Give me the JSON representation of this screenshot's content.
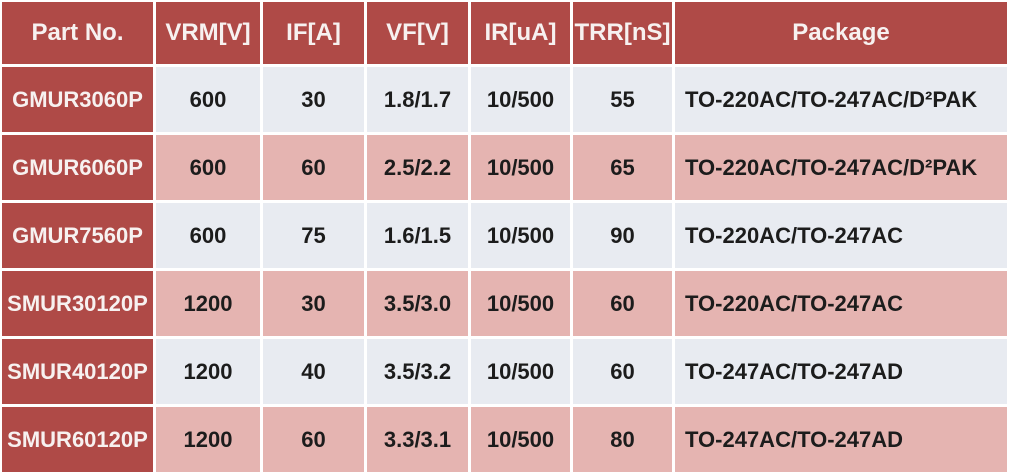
{
  "colors": {
    "header_bg": "#AF4A47",
    "header_text": "#F7F1F0",
    "row_alt_light": "#E8EBF1",
    "row_alt_pink": "#E5B4B1",
    "cell_text": "#1C1C1C",
    "grid": "#FFFFFF"
  },
  "table": {
    "columns": [
      {
        "key": "part_no",
        "label": "Part No."
      },
      {
        "key": "vrm",
        "label": "VRM[V]"
      },
      {
        "key": "if",
        "label": "IF[A]"
      },
      {
        "key": "vf",
        "label": "VF[V]"
      },
      {
        "key": "ir",
        "label": "IR[uA]"
      },
      {
        "key": "trr",
        "label": "TRR[nS]"
      },
      {
        "key": "package",
        "label": "Package"
      }
    ],
    "rows": [
      {
        "part_no": "GMUR3060P",
        "vrm": "600",
        "if": "30",
        "vf": "1.8/1.7",
        "ir": "10/500",
        "trr": "55",
        "package": "TO-220AC/TO-247AC/D²PAK"
      },
      {
        "part_no": "GMUR6060P",
        "vrm": "600",
        "if": "60",
        "vf": "2.5/2.2",
        "ir": "10/500",
        "trr": "65",
        "package": "TO-220AC/TO-247AC/D²PAK"
      },
      {
        "part_no": "GMUR7560P",
        "vrm": "600",
        "if": "75",
        "vf": "1.6/1.5",
        "ir": "10/500",
        "trr": "90",
        "package": "TO-220AC/TO-247AC"
      },
      {
        "part_no": "SMUR30120P",
        "vrm": "1200",
        "if": "30",
        "vf": "3.5/3.0",
        "ir": "10/500",
        "trr": "60",
        "package": "TO-220AC/TO-247AC"
      },
      {
        "part_no": "SMUR40120P",
        "vrm": "1200",
        "if": "40",
        "vf": "3.5/3.2",
        "ir": "10/500",
        "trr": "60",
        "package": "TO-247AC/TO-247AD"
      },
      {
        "part_no": "SMUR60120P",
        "vrm": "1200",
        "if": "60",
        "vf": "3.3/3.1",
        "ir": "10/500",
        "trr": "80",
        "package": "TO-247AC/TO-247AD"
      }
    ]
  }
}
